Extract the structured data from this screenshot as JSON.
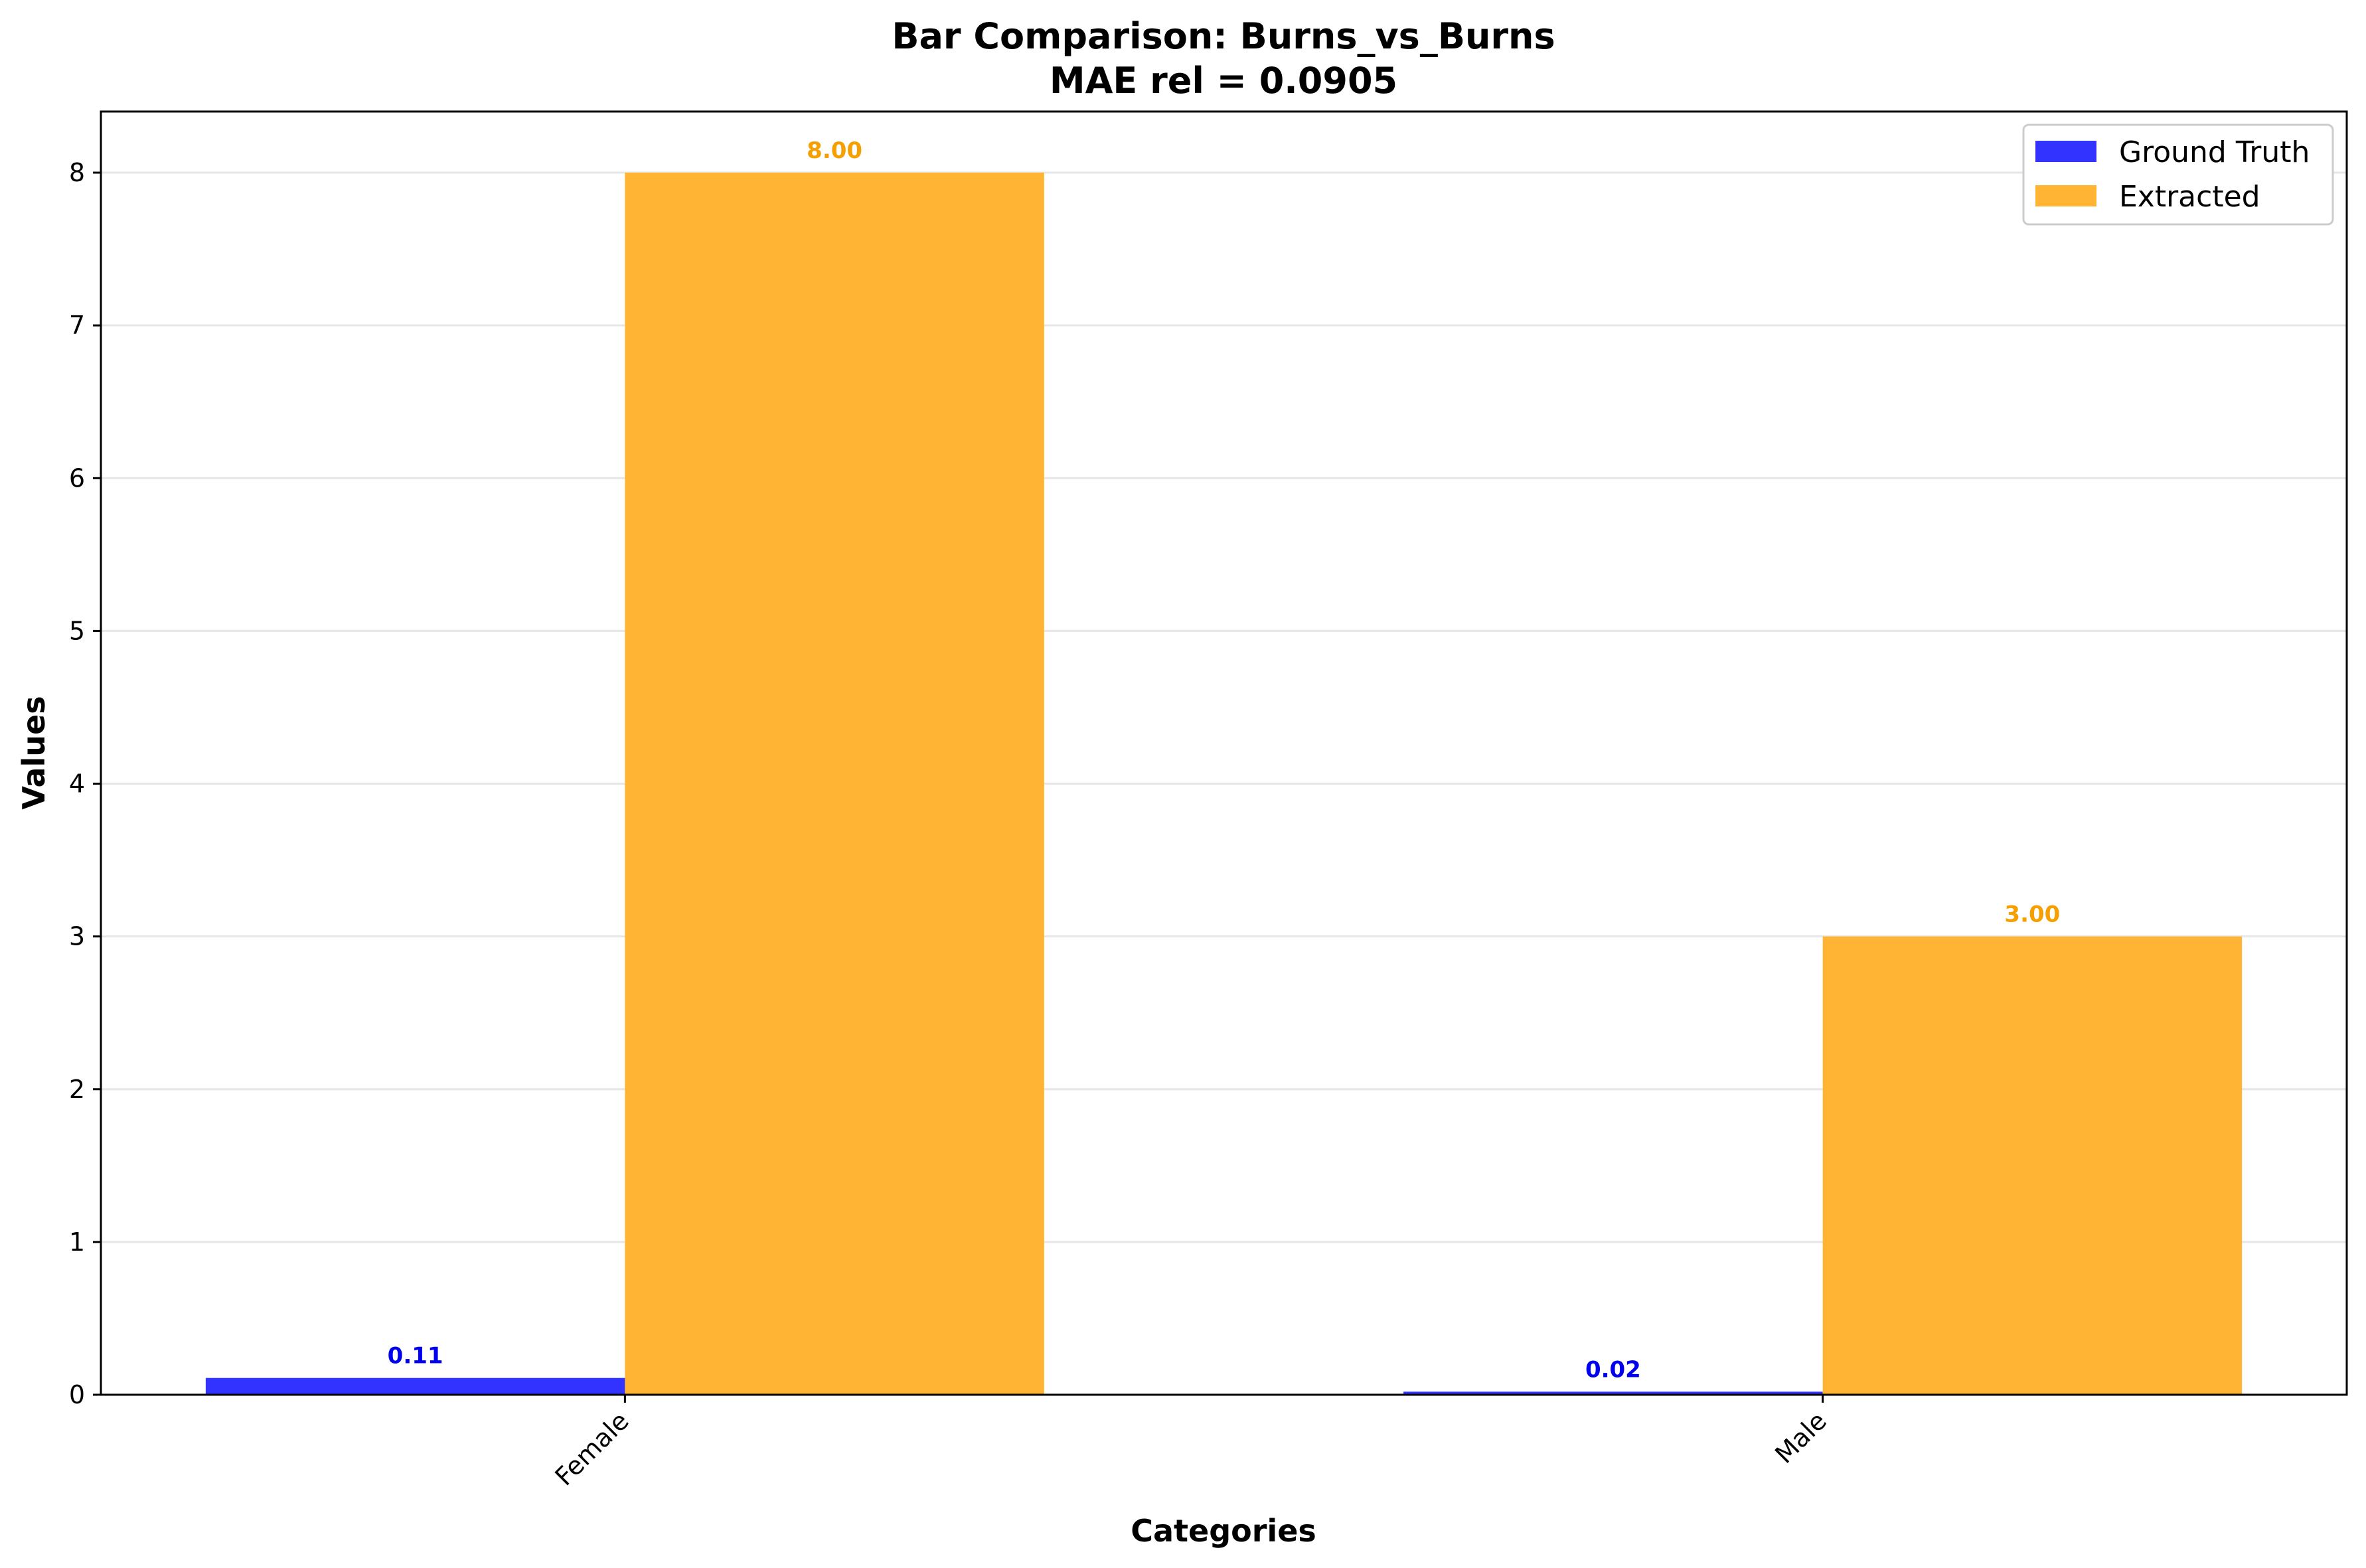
{
  "chart_data": {
    "type": "bar",
    "title": "Bar Comparison: Burns_vs_Burns",
    "subtitle": "MAE rel = 0.0905",
    "xlabel": "Categories",
    "ylabel": "Values",
    "categories": [
      "Female",
      "Male"
    ],
    "series": [
      {
        "name": "Ground Truth",
        "values": [
          0.11,
          0.02
        ],
        "labels": [
          "0.11",
          "0.02"
        ],
        "color": "#3333ff",
        "label_color": "#0000ee"
      },
      {
        "name": "Extracted",
        "values": [
          8.0,
          3.0
        ],
        "labels": [
          "8.00",
          "3.00"
        ],
        "color": "#ffb533",
        "label_color": "#f5a000"
      }
    ],
    "ylim": [
      0,
      8.4
    ],
    "yticks": [
      "0",
      "1",
      "2",
      "3",
      "4",
      "5",
      "6",
      "7",
      "8"
    ],
    "grid": true,
    "legend_position": "top-right"
  }
}
